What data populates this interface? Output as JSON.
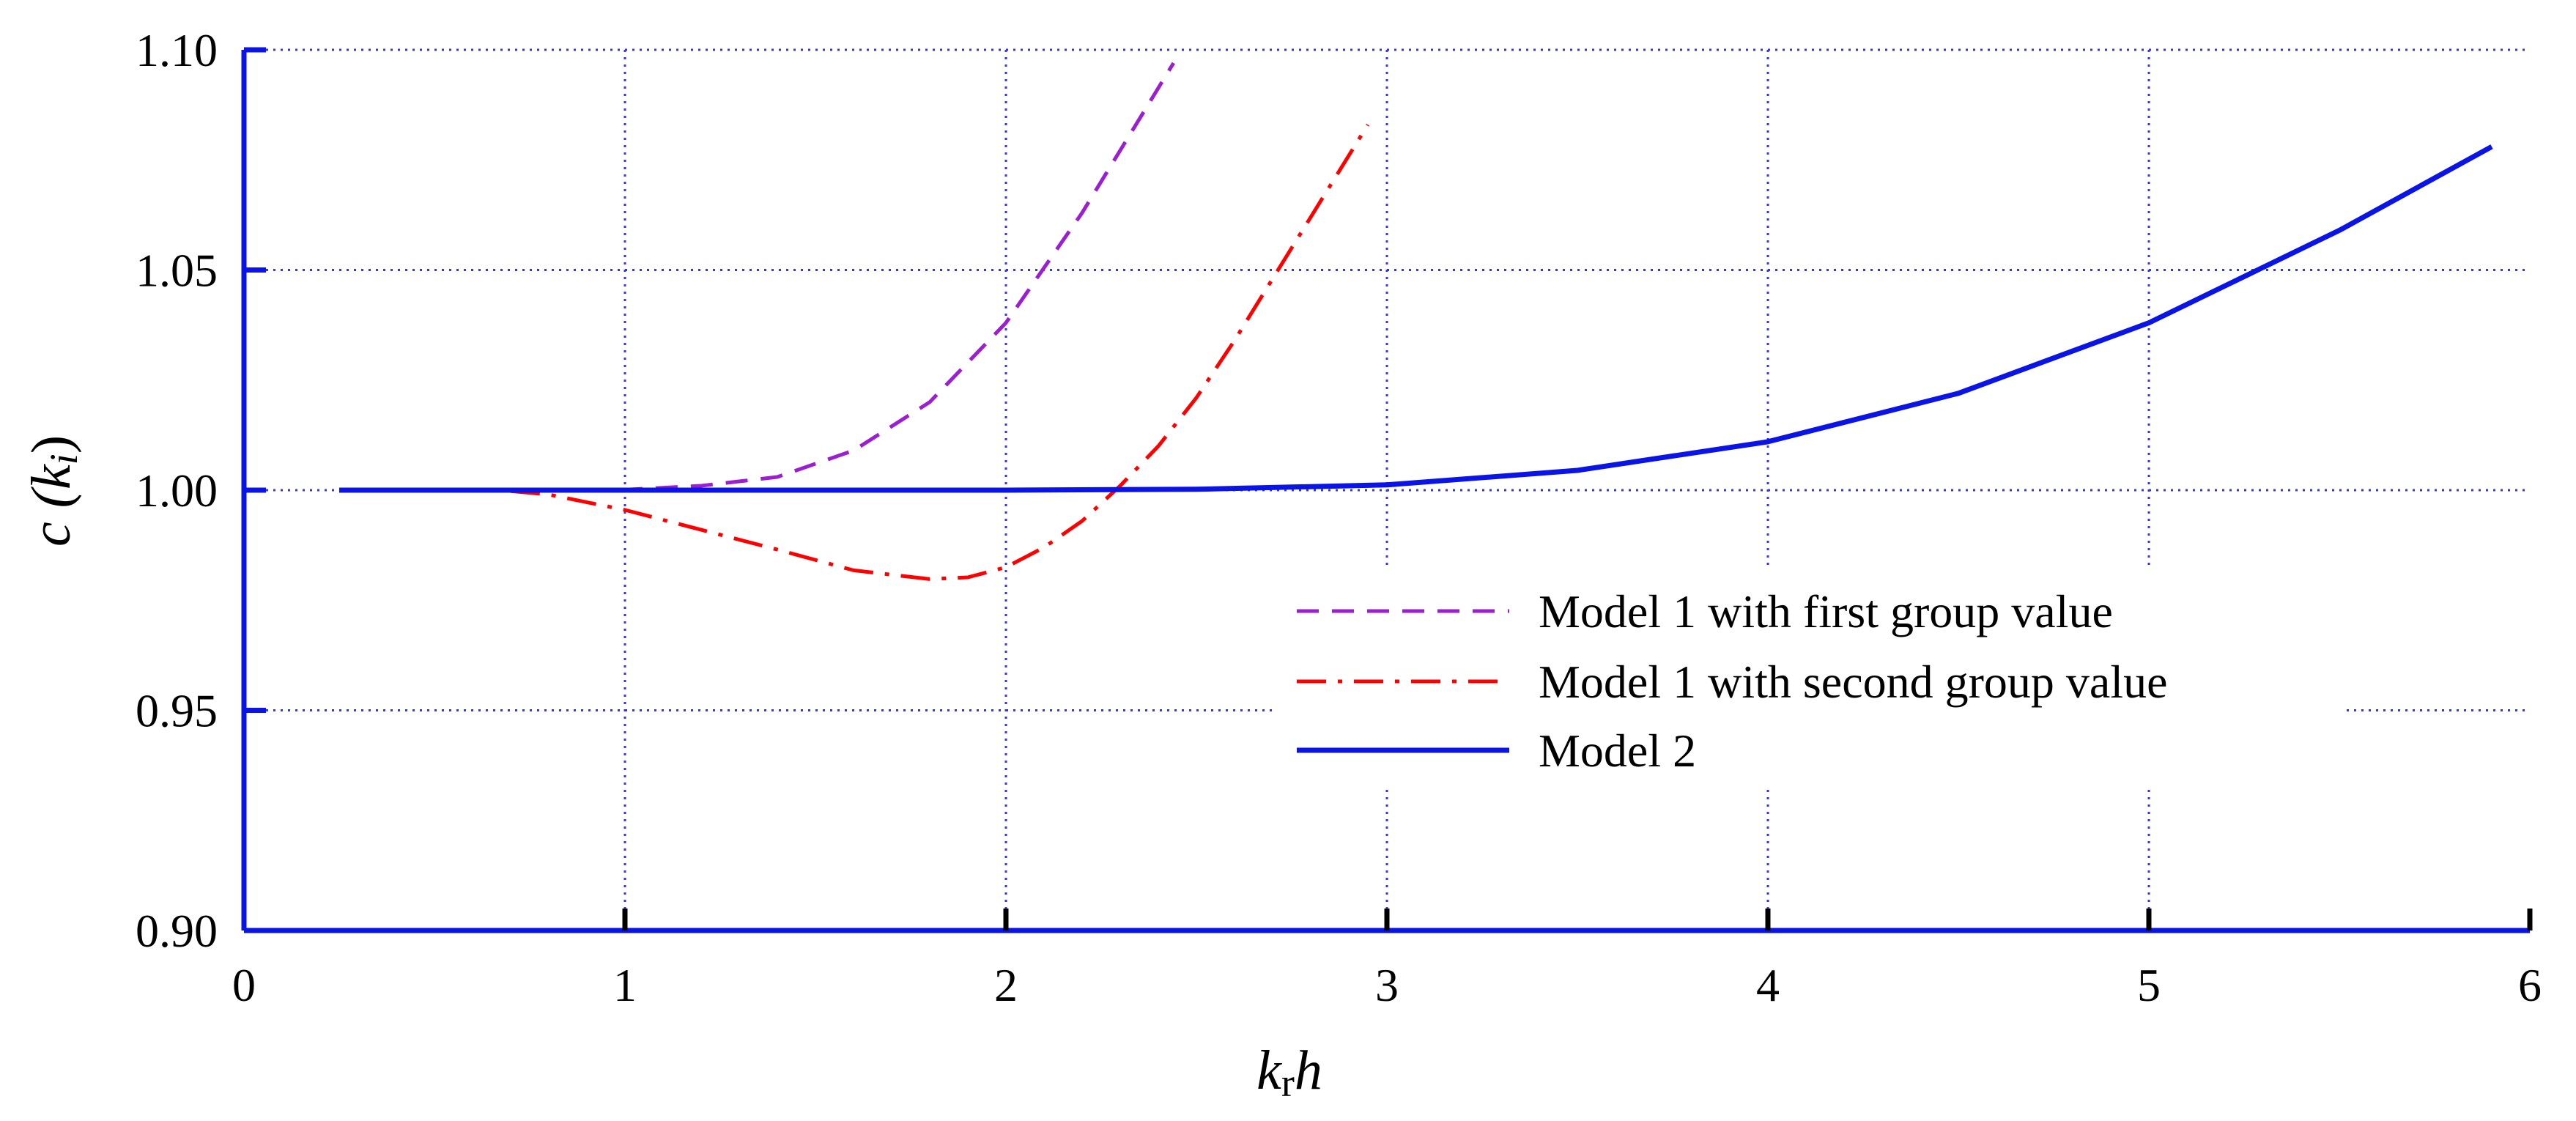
{
  "chart_data": {
    "type": "line",
    "title": "",
    "xlabel": {
      "main": "k",
      "sub": "r",
      "tail": "h"
    },
    "ylabel": {
      "pre": "c (",
      "main": "k",
      "sub": "i",
      "post": ")"
    },
    "xlim": [
      0,
      6
    ],
    "ylim": [
      0.9,
      1.1
    ],
    "xticks": [
      0,
      1,
      2,
      3,
      4,
      5,
      6
    ],
    "xtick_labels": [
      "0",
      "1",
      "2",
      "3",
      "4",
      "5",
      "6"
    ],
    "yticks": [
      0.9,
      0.95,
      1.0,
      1.05,
      1.1
    ],
    "ytick_labels": [
      "0.90",
      "0.95",
      "1.00",
      "1.05",
      "1.10"
    ],
    "grid": true,
    "legend_position": "center-right",
    "series": [
      {
        "name": "Model 1 with first group value",
        "color": "#9B1FD0",
        "style": "dashed",
        "x": [
          0.25,
          0.5,
          0.75,
          1.0,
          1.2,
          1.4,
          1.6,
          1.8,
          2.0,
          2.2,
          2.44
        ],
        "y": [
          1.0,
          1.0,
          1.0,
          1.0001,
          1.001,
          1.003,
          1.009,
          1.02,
          1.038,
          1.063,
          1.097
        ]
      },
      {
        "name": "Model 1 with second group value",
        "color": "#FF0000",
        "style": "dashdot",
        "x": [
          0.25,
          0.5,
          0.7,
          0.8,
          1.0,
          1.2,
          1.4,
          1.6,
          1.8,
          1.9,
          2.0,
          2.1,
          2.2,
          2.3,
          2.4,
          2.5,
          2.6,
          2.7,
          2.8,
          2.95
        ],
        "y": [
          1.0,
          1.0,
          0.9998,
          0.999,
          0.9955,
          0.991,
          0.9865,
          0.9818,
          0.9798,
          0.9802,
          0.9825,
          0.987,
          0.993,
          1.001,
          1.01,
          1.021,
          1.034,
          1.048,
          1.062,
          1.083
        ]
      },
      {
        "name": "Model 2",
        "color": "#0A14E6",
        "style": "solid",
        "x": [
          0.25,
          1.0,
          2.0,
          2.5,
          3.0,
          3.5,
          4.0,
          4.5,
          5.0,
          5.5,
          5.9
        ],
        "y": [
          1.0,
          1.0,
          1.0,
          1.0002,
          1.0012,
          1.0045,
          1.011,
          1.022,
          1.038,
          1.059,
          1.078
        ]
      }
    ]
  }
}
